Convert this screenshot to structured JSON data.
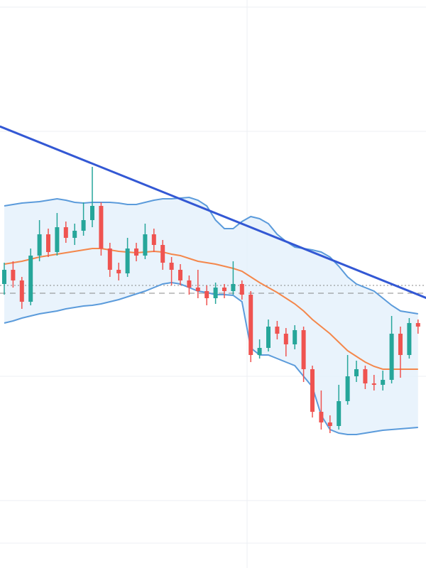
{
  "chart_data": {
    "type": "candlestick",
    "ylim": [
      0,
      800
    ],
    "open": [
      400,
      420,
      405,
      375,
      440,
      470,
      445,
      480,
      465,
      475,
      490,
      510,
      450,
      420,
      415,
      450,
      440,
      470,
      455,
      430,
      420,
      405,
      395,
      390,
      380,
      395,
      390,
      400,
      385,
      300,
      310,
      340,
      330,
      315,
      335,
      280,
      220,
      205,
      200,
      235,
      270,
      280,
      260,
      258,
      265,
      330,
      300,
      345
    ],
    "high": [
      430,
      432,
      410,
      450,
      490,
      478,
      500,
      488,
      485,
      515,
      565,
      515,
      458,
      430,
      465,
      458,
      485,
      478,
      462,
      438,
      428,
      412,
      420,
      398,
      402,
      400,
      432,
      405,
      390,
      322,
      350,
      348,
      338,
      342,
      340,
      285,
      250,
      215,
      258,
      300,
      292,
      285,
      272,
      278,
      355,
      340,
      352,
      350
    ],
    "low": [
      385,
      395,
      365,
      370,
      432,
      438,
      440,
      458,
      455,
      468,
      480,
      440,
      410,
      405,
      410,
      432,
      435,
      445,
      420,
      398,
      398,
      385,
      380,
      370,
      372,
      380,
      385,
      378,
      290,
      295,
      305,
      322,
      298,
      308,
      262,
      212,
      195,
      190,
      195,
      230,
      262,
      252,
      250,
      250,
      260,
      268,
      295,
      330
    ],
    "close": [
      420,
      405,
      375,
      440,
      470,
      445,
      480,
      465,
      475,
      490,
      510,
      450,
      420,
      415,
      450,
      440,
      470,
      455,
      430,
      420,
      405,
      395,
      390,
      380,
      395,
      390,
      400,
      385,
      300,
      310,
      340,
      330,
      315,
      335,
      280,
      220,
      205,
      200,
      235,
      270,
      280,
      260,
      258,
      265,
      330,
      300,
      345,
      340
    ],
    "up_color": "#26a69a",
    "down_color": "#ef5350",
    "bands": {
      "upper": [
        510,
        512,
        514,
        515,
        516,
        518,
        520,
        518,
        515,
        514,
        515,
        515,
        515,
        514,
        512,
        512,
        515,
        518,
        520,
        520,
        521,
        522,
        518,
        510,
        490,
        478,
        478,
        488,
        495,
        492,
        485,
        470,
        460,
        452,
        450,
        448,
        445,
        438,
        425,
        410,
        400,
        395,
        390,
        380,
        370,
        362,
        360,
        358
      ],
      "middle": [
        428,
        430,
        432,
        435,
        438,
        440,
        442,
        444,
        446,
        448,
        450,
        450,
        448,
        446,
        445,
        444,
        445,
        446,
        445,
        442,
        440,
        436,
        432,
        430,
        428,
        425,
        422,
        418,
        410,
        402,
        395,
        388,
        380,
        372,
        362,
        350,
        340,
        330,
        318,
        306,
        298,
        290,
        284,
        280,
        280,
        280,
        280,
        280
      ],
      "lower": [
        345,
        348,
        352,
        355,
        358,
        360,
        362,
        365,
        367,
        369,
        370,
        372,
        375,
        378,
        382,
        386,
        390,
        395,
        400,
        402,
        400,
        395,
        390,
        388,
        385,
        385,
        384,
        375,
        310,
        300,
        300,
        295,
        290,
        285,
        270,
        255,
        215,
        195,
        190,
        188,
        188,
        190,
        192,
        194,
        195,
        196,
        197,
        198
      ],
      "band_color": "#5b9bdb",
      "middle_color": "#f4874b",
      "fill": "#e3f0fb"
    },
    "trendline": {
      "start": [
        -0.5,
        622
      ],
      "end": [
        48,
        380
      ],
      "color": "#3358d4"
    },
    "levels": [
      398,
      387
    ]
  }
}
